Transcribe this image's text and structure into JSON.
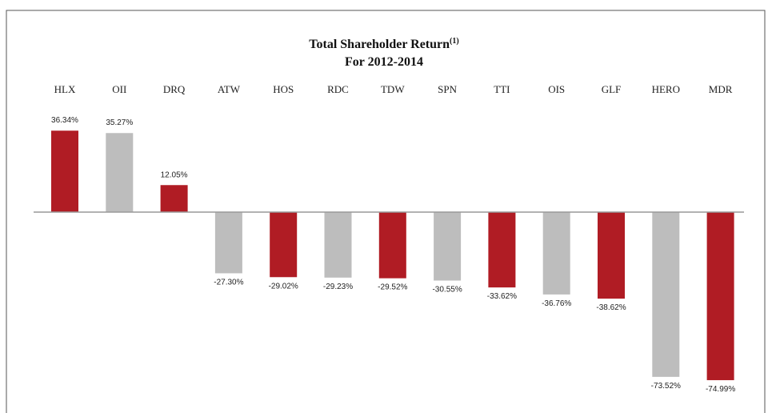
{
  "chart_data": {
    "type": "bar",
    "title": "Total Shareholder Return",
    "title_superscript": "(1)",
    "subtitle": "For 2012-2014",
    "categories": [
      "HLX",
      "OII",
      "DRQ",
      "ATW",
      "HOS",
      "RDC",
      "TDW",
      "SPN",
      "TTI",
      "OIS",
      "GLF",
      "HERO",
      "MDR"
    ],
    "values": [
      36.34,
      35.27,
      12.05,
      -27.3,
      -29.02,
      -29.23,
      -29.52,
      -30.55,
      -33.62,
      -36.76,
      -38.62,
      -73.52,
      -74.99
    ],
    "value_labels": [
      "36.34%",
      "35.27%",
      "12.05%",
      "-27.30%",
      "-29.02%",
      "-29.23%",
      "-29.52%",
      "-30.55%",
      "-33.62%",
      "-36.76%",
      "-38.62%",
      "-73.52%",
      "-74.99%"
    ],
    "colors": [
      "#b01c24",
      "#bdbdbd",
      "#b01c24",
      "#bdbdbd",
      "#b01c24",
      "#bdbdbd",
      "#b01c24",
      "#bdbdbd",
      "#b01c24",
      "#bdbdbd",
      "#b01c24",
      "#bdbdbd",
      "#b01c24"
    ],
    "ylim": [
      -80,
      40
    ]
  }
}
